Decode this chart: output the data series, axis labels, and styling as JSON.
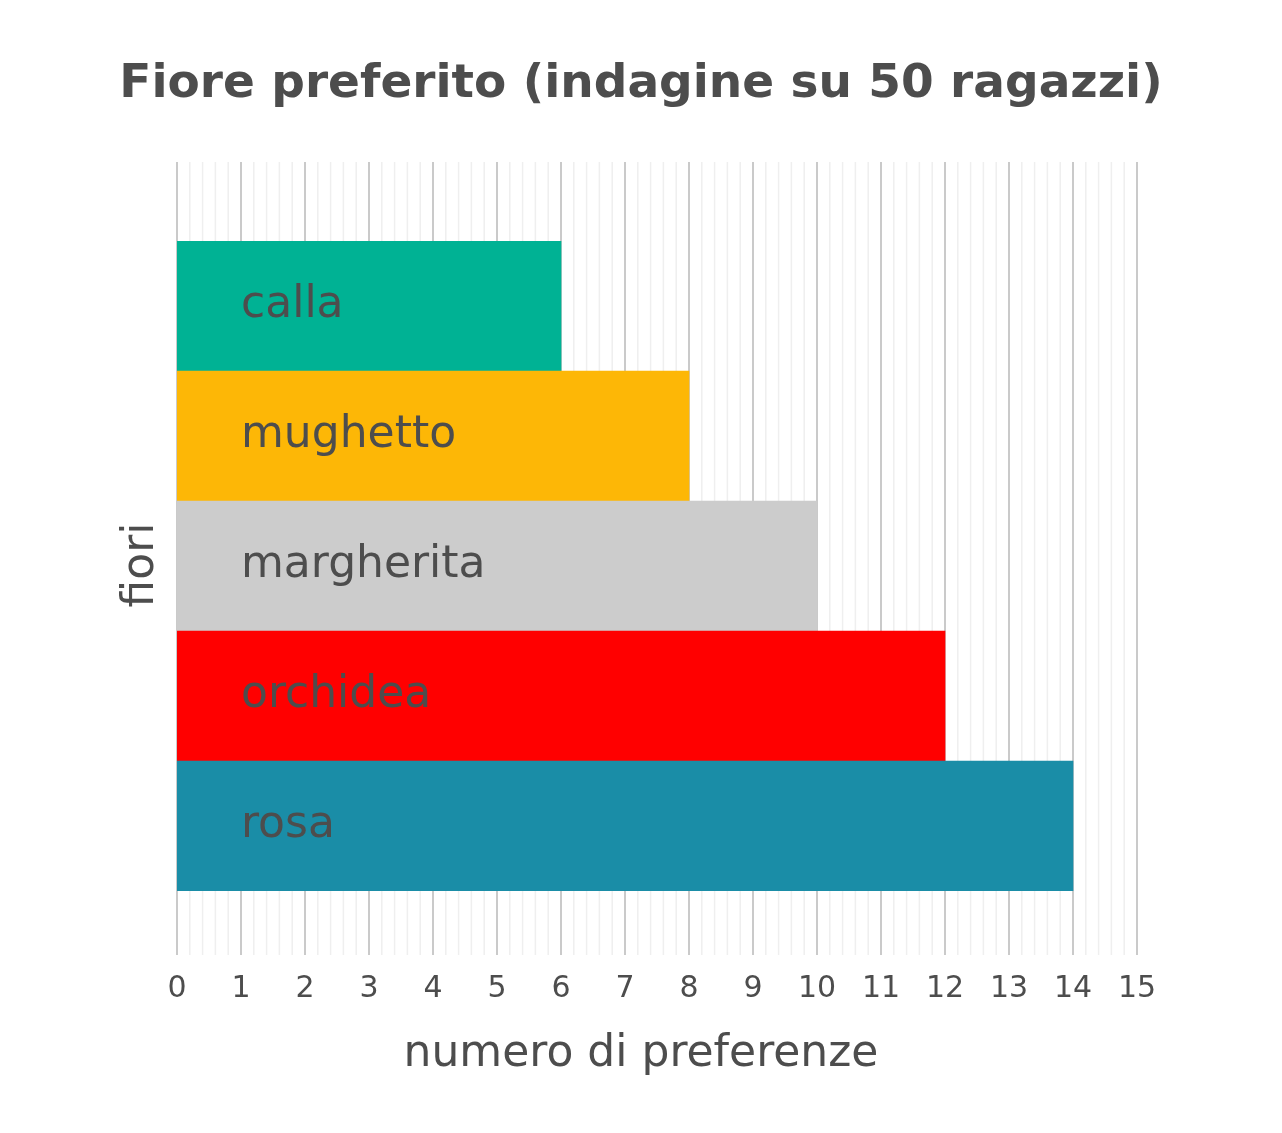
{
  "chart_data": {
    "type": "bar",
    "orientation": "horizontal",
    "title": "Fiore preferito (indagine su 50 ragazzi)",
    "xlabel": "numero di preferenze",
    "ylabel": "fiori",
    "categories": [
      "calla",
      "mughetto",
      "margherita",
      "orchidea",
      "rosa"
    ],
    "values": [
      6,
      8,
      10,
      12,
      14
    ],
    "colors": [
      "#00b294",
      "#fdb706",
      "#cccccc",
      "#ff0000",
      "#1a8da7"
    ],
    "xlim": [
      0,
      15
    ],
    "xticks": [
      0,
      {
        "value": 0.2,
        "label": null
      },
      {
        "value": 0.4,
        "label": null
      },
      {
        "value": 0.6,
        "label": null
      },
      {
        "value": 0.8,
        "label": null
      },
      1,
      {
        "value": 1.2,
        "label": null
      },
      {
        "value": 1.4,
        "label": null
      },
      {
        "value": 1.6,
        "label": null
      },
      {
        "value": 1.8,
        "label": null
      },
      2,
      {
        "value": 2.2,
        "label": null
      },
      {
        "value": 2.4,
        "label": null
      },
      {
        "value": 2.6,
        "label": null
      },
      {
        "value": 2.8,
        "label": null
      },
      3,
      {
        "value": 3.2,
        "label": null
      },
      {
        "value": 3.4,
        "label": null
      },
      {
        "value": 3.6,
        "label": null
      },
      {
        "value": 3.8,
        "label": null
      },
      4,
      {
        "value": 4.2,
        "label": null
      },
      {
        "value": 4.4,
        "label": null
      },
      {
        "value": 4.6,
        "label": null
      },
      {
        "value": 4.8,
        "label": null
      },
      5,
      {
        "value": 5.2,
        "label": null
      },
      {
        "value": 5.4,
        "label": null
      },
      {
        "value": 5.6,
        "label": null
      },
      {
        "value": 5.8,
        "label": null
      },
      6,
      {
        "value": 6.2,
        "label": null
      },
      {
        "value": 6.4,
        "label": null
      },
      {
        "value": 6.6,
        "label": null
      },
      {
        "value": 6.8,
        "label": null
      },
      7,
      {
        "value": 7.2,
        "label": null
      },
      {
        "value": 7.4,
        "label": null
      },
      {
        "value": 7.6,
        "label": null
      },
      {
        "value": 7.8,
        "label": null
      },
      8,
      {
        "value": 8.2,
        "label": null
      },
      {
        "value": 8.4,
        "label": null
      },
      {
        "value": 8.6,
        "label": null
      },
      {
        "value": 8.8,
        "label": null
      },
      9,
      {
        "value": 9.2,
        "label": null
      },
      {
        "value": 9.4,
        "label": null
      },
      {
        "value": 9.6,
        "label": null
      },
      {
        "value": 9.8,
        "label": null
      },
      10,
      {
        "value": 10.2,
        "label": null
      },
      {
        "value": 10.4,
        "label": null
      },
      {
        "value": 10.6,
        "label": null
      },
      {
        "value": 10.8,
        "label": null
      },
      11,
      {
        "value": 11.2,
        "label": null
      },
      {
        "value": 11.4,
        "label": null
      },
      {
        "value": 11.6,
        "label": null
      },
      {
        "value": 11.8,
        "label": null
      },
      12,
      {
        "value": 12.2,
        "label": null
      },
      {
        "value": 12.4,
        "label": null
      },
      {
        "value": 12.6,
        "label": null
      },
      {
        "value": 12.8,
        "label": null
      },
      13,
      {
        "value": 13.2,
        "label": null
      },
      {
        "value": 13.4,
        "label": null
      },
      {
        "value": 13.6,
        "label": null
      },
      {
        "value": 13.8,
        "label": null
      },
      14,
      {
        "value": 14.2,
        "label": null
      },
      {
        "value": 14.4,
        "label": null
      },
      {
        "value": 14.6,
        "label": null
      },
      {
        "value": 14.8,
        "label": null
      },
      15
    ],
    "grid": "x"
  }
}
